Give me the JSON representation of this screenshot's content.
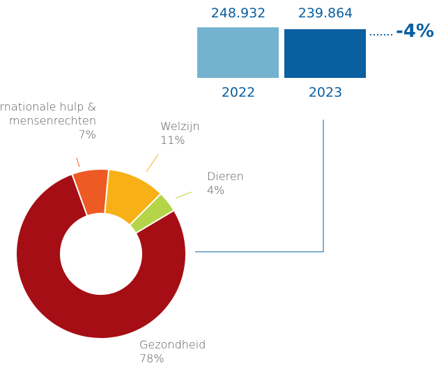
{
  "chart_data": [
    {
      "type": "bar",
      "categories": [
        "2022",
        "2023"
      ],
      "values": [
        248932,
        239864
      ],
      "value_labels": [
        "248.932",
        "239.864"
      ],
      "colors": [
        "#74b3d0",
        "#0a5fa0"
      ],
      "ylim": [
        0,
        250000
      ],
      "annotation": "-4%"
    },
    {
      "type": "donut",
      "categories": [
        "Internationale hulp & mensenrechten",
        "Welzijn",
        "Dieren",
        "Gezondheid"
      ],
      "values": [
        7,
        11,
        4,
        78
      ],
      "value_labels": [
        "7%",
        "11%",
        "4%",
        "78%"
      ],
      "colors": [
        "#ee5a24",
        "#f8b017",
        "#b5d548",
        "#a50e14"
      ]
    }
  ]
}
